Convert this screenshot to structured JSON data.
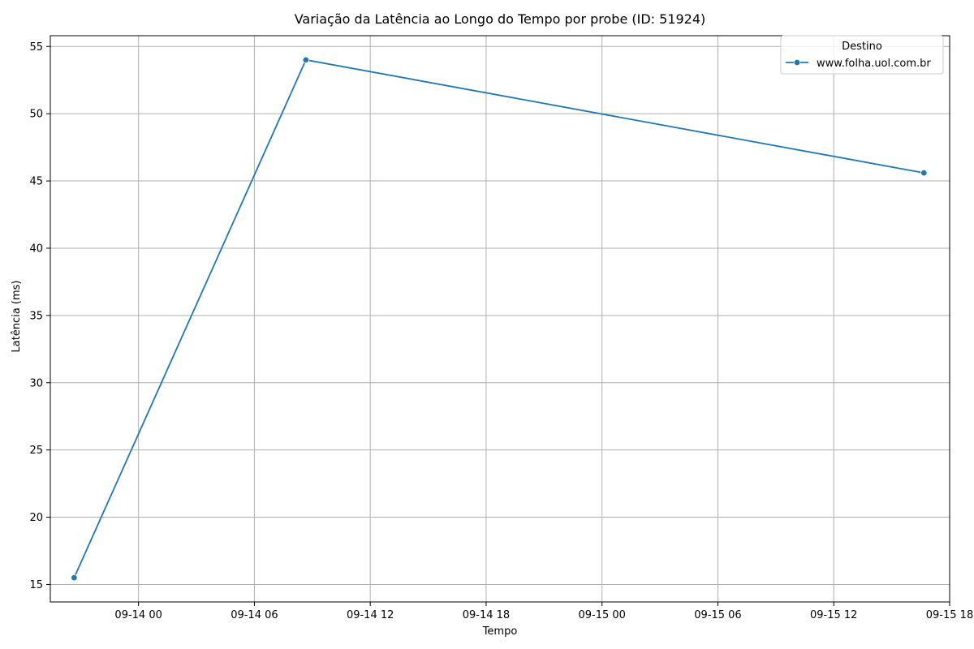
{
  "chart_data": {
    "type": "line",
    "title": "Variação da Latência ao Longo do Tempo por probe (ID: 51924)",
    "xlabel": "Tempo",
    "ylabel": "Latência (ms)",
    "x_ticks": [
      "09-14 00",
      "09-14 06",
      "09-14 12",
      "09-14 18",
      "09-15 00",
      "09-15 06",
      "09-15 12",
      "09-15 18"
    ],
    "x_range": [
      "2024-09-13 19:26",
      "2024-09-15 18:00"
    ],
    "y_ticks": [
      15,
      20,
      25,
      30,
      35,
      40,
      45,
      50,
      55
    ],
    "ylim": [
      13.7,
      55.8
    ],
    "grid": true,
    "legend": {
      "title": "Destino",
      "position": "top-right"
    },
    "series": [
      {
        "name": "www.folha.uol.com.br",
        "color": "#1f77b4",
        "x": [
          "2024-09-13 20:40",
          "2024-09-14 08:40",
          "2024-09-15 16:40"
        ],
        "y": [
          15.5,
          54.0,
          45.6
        ]
      }
    ]
  }
}
